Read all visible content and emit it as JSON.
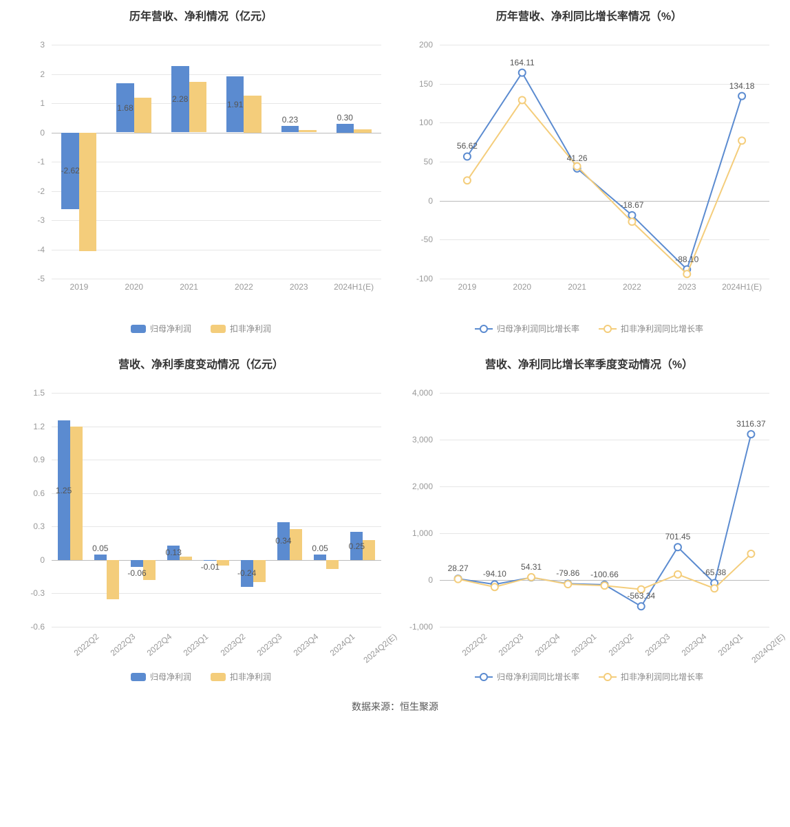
{
  "colors": {
    "series1": "#5b8bd0",
    "series2": "#f4cd7b",
    "grid": "#e6e6e6",
    "axis_text": "#999999",
    "title_text": "#333333",
    "label_text": "#555555",
    "background": "#ffffff"
  },
  "footer": "数据来源：恒生聚源",
  "charts": {
    "tl": {
      "type": "bar",
      "title": "历年营收、净利情况（亿元）",
      "categories": [
        "2019",
        "2020",
        "2021",
        "2022",
        "2023",
        "2024H1(E)"
      ],
      "series": [
        {
          "name": "归母净利润",
          "color": "#5b8bd0",
          "values": [
            -2.62,
            1.68,
            2.28,
            1.91,
            0.23,
            0.3
          ],
          "labels": [
            "-2.62",
            "1.68",
            "2.28",
            "1.91",
            "0.23",
            "0.30"
          ]
        },
        {
          "name": "扣非净利润",
          "color": "#f4cd7b",
          "values": [
            -4.05,
            1.2,
            1.72,
            1.25,
            0.08,
            0.1
          ],
          "labels": [
            null,
            null,
            null,
            null,
            null,
            null
          ]
        }
      ],
      "ylim": [
        -5,
        3
      ],
      "ytick_step": 1,
      "x_rotate": false,
      "bar_width": 0.32,
      "title_fontsize": 16,
      "label_fontsize": 12
    },
    "tr": {
      "type": "line",
      "title": "历年营收、净利同比增长率情况（%）",
      "categories": [
        "2019",
        "2020",
        "2021",
        "2022",
        "2023",
        "2024H1(E)"
      ],
      "series": [
        {
          "name": "归母净利润同比增长率",
          "color": "#5b8bd0",
          "values": [
            56.62,
            164.11,
            41.26,
            -18.67,
            -88.1,
            134.18
          ],
          "labels": [
            "56.62",
            "164.11",
            "41.26",
            "-18.67",
            "-88.10",
            "134.18"
          ]
        },
        {
          "name": "扣非净利润同比增长率",
          "color": "#f4cd7b",
          "values": [
            26,
            129,
            44,
            -27,
            -94,
            77
          ],
          "labels": [
            null,
            null,
            null,
            null,
            null,
            null
          ]
        }
      ],
      "ylim": [
        -100,
        200
      ],
      "ytick_step": 50,
      "x_rotate": false,
      "marker_size": 5,
      "line_width": 2,
      "title_fontsize": 16,
      "label_fontsize": 12
    },
    "bl": {
      "type": "bar",
      "title": "营收、净利季度变动情况（亿元）",
      "categories": [
        "2022Q2",
        "2022Q3",
        "2022Q4",
        "2023Q1",
        "2023Q2",
        "2023Q3",
        "2023Q4",
        "2024Q1",
        "2024Q2(E)"
      ],
      "series": [
        {
          "name": "归母净利润",
          "color": "#5b8bd0",
          "values": [
            1.25,
            0.05,
            -0.06,
            0.13,
            -0.01,
            -0.24,
            0.34,
            0.05,
            0.25
          ],
          "labels": [
            "1.25",
            "0.05",
            "-0.06",
            "0.13",
            "-0.01",
            "-0.24",
            "0.34",
            "0.05",
            "0.25"
          ]
        },
        {
          "name": "扣非净利润",
          "color": "#f4cd7b",
          "values": [
            1.2,
            -0.35,
            -0.18,
            0.03,
            -0.05,
            -0.2,
            0.28,
            -0.08,
            0.18
          ],
          "labels": [
            null,
            null,
            null,
            null,
            null,
            null,
            null,
            null,
            null
          ]
        }
      ],
      "ylim": [
        -0.6,
        1.5
      ],
      "ytick_step": 0.3,
      "x_rotate": true,
      "bar_width": 0.34,
      "title_fontsize": 16,
      "label_fontsize": 12
    },
    "br": {
      "type": "line",
      "title": "营收、净利同比增长率季度变动情况（%）",
      "categories": [
        "2022Q2",
        "2022Q3",
        "2022Q4",
        "2023Q1",
        "2023Q2",
        "2023Q3",
        "2023Q4",
        "2024Q1",
        "2024Q2(E)"
      ],
      "series": [
        {
          "name": "归母净利润同比增长率",
          "color": "#5b8bd0",
          "values": [
            28.27,
            -94.1,
            54.31,
            -79.86,
            -100.66,
            -563.34,
            701.45,
            -65.38,
            3116.37
          ],
          "labels": [
            "28.27",
            "-94.10",
            "54.31",
            "-79.86",
            "-100.66",
            "-563.34",
            "701.45",
            "-65.38",
            "3116.37"
          ]
        },
        {
          "name": "扣非净利润同比增长率",
          "color": "#f4cd7b",
          "values": [
            20,
            -150,
            60,
            -90,
            -120,
            -200,
            120,
            -180,
            560
          ],
          "labels": [
            null,
            null,
            null,
            null,
            null,
            null,
            null,
            null,
            null
          ]
        }
      ],
      "ylim": [
        -1000,
        4000
      ],
      "ytick_step": 1000,
      "x_rotate": true,
      "marker_size": 5,
      "line_width": 2,
      "title_fontsize": 16,
      "label_fontsize": 12
    }
  }
}
